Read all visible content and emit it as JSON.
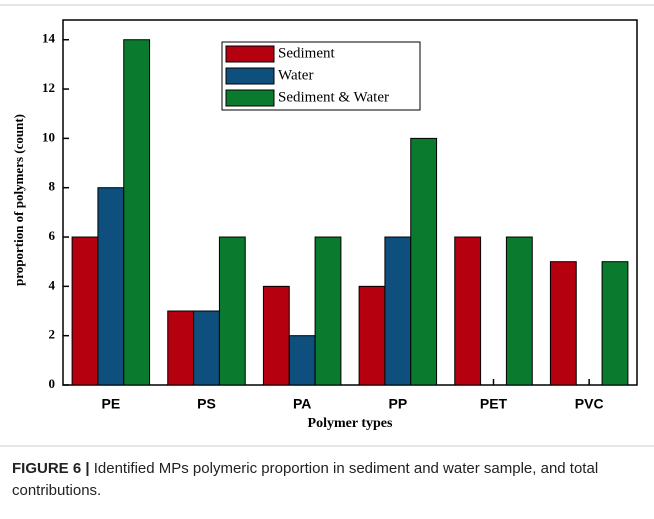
{
  "chart_data": {
    "type": "bar",
    "y_label": "proportion of polymers (count)",
    "x_label": "Polymer types",
    "categories": [
      "PE",
      "PS",
      "PA",
      "PP",
      "PET",
      "PVC"
    ],
    "series": [
      {
        "name": "Sediment",
        "color": "#b5000f",
        "values": [
          6,
          3,
          4,
          4,
          6,
          5
        ]
      },
      {
        "name": "Water",
        "color": "#0e4f7e",
        "values": [
          8,
          3,
          2,
          6,
          null,
          null
        ]
      },
      {
        "name": "Sediment & Water",
        "color": "#0a7a2e",
        "values": [
          14,
          6,
          6,
          10,
          6,
          5
        ]
      }
    ],
    "ylim": [
      0,
      14.8
    ],
    "yticks": [
      0,
      2,
      4,
      6,
      8,
      10,
      12,
      14
    ],
    "grid": false,
    "legend": "top"
  },
  "caption": {
    "label": "FIGURE 6 |",
    "text": "Identified MPs polymeric proportion in sediment and water sample, and total contributions."
  }
}
